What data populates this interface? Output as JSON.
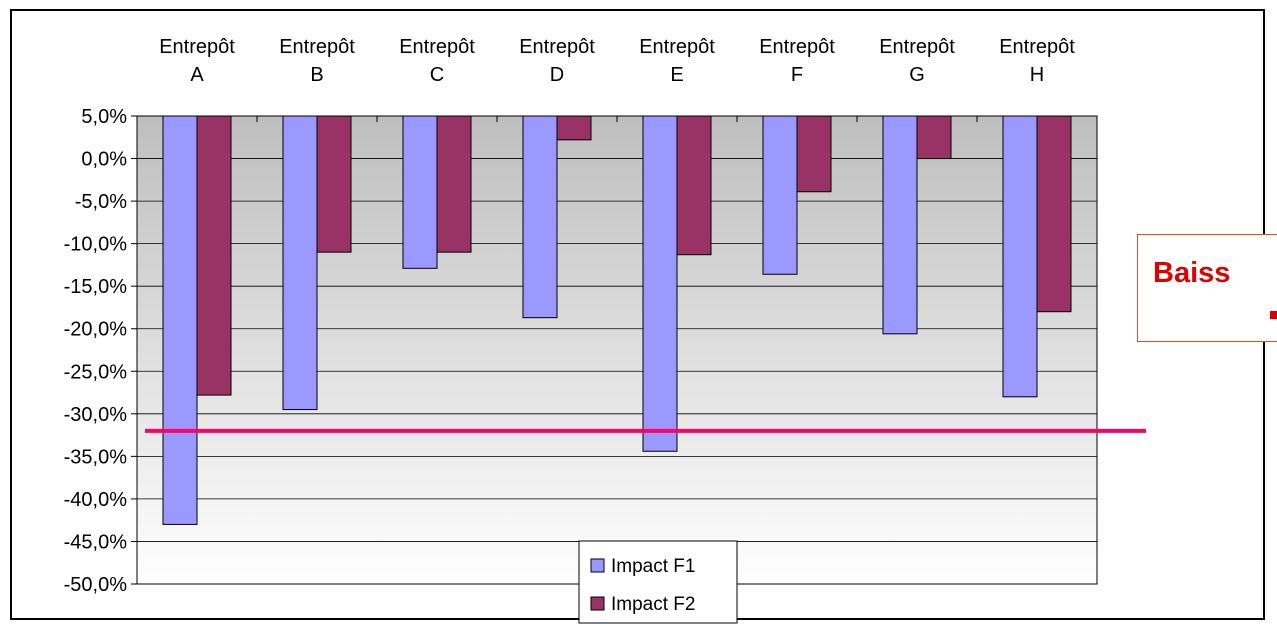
{
  "chart_data": {
    "type": "bar",
    "categories": [
      [
        "Entrepôt",
        "A"
      ],
      [
        "Entrepôt",
        "B"
      ],
      [
        "Entrepôt",
        "C"
      ],
      [
        "Entrepôt",
        "D"
      ],
      [
        "Entrepôt",
        "E"
      ],
      [
        "Entrepôt",
        "F"
      ],
      [
        "Entrepôt",
        "G"
      ],
      [
        "Entrepôt",
        "H"
      ]
    ],
    "series": [
      {
        "name": "Impact F1",
        "color": "#9999ff",
        "values": [
          -43.0,
          -29.5,
          -12.9,
          -18.7,
          -34.4,
          -13.6,
          -20.6,
          -28.0
        ]
      },
      {
        "name": "Impact F2",
        "color": "#993366",
        "values": [
          -27.8,
          -11.0,
          -11.0,
          2.2,
          -11.3,
          -3.9,
          0.0,
          -18.0
        ]
      }
    ],
    "y_ticks": [
      "5,0%",
      "0,0%",
      "-5,0%",
      "-10,0%",
      "-15,0%",
      "-20,0%",
      "-25,0%",
      "-30,0%",
      "-35,0%",
      "-40,0%",
      "-45,0%",
      "-50,0%"
    ],
    "ylim": [
      -50,
      5
    ],
    "x_axis_position": "top",
    "bars_hang_from": 5,
    "reference_line": {
      "value": -32,
      "color": "#ff0066"
    },
    "grid": true,
    "legend_position": "bottom-center",
    "plot_background": "gradient gray to white"
  },
  "callout": {
    "text": "Baiss",
    "text_color": "#e00000",
    "border_color": "#e74c1c"
  }
}
